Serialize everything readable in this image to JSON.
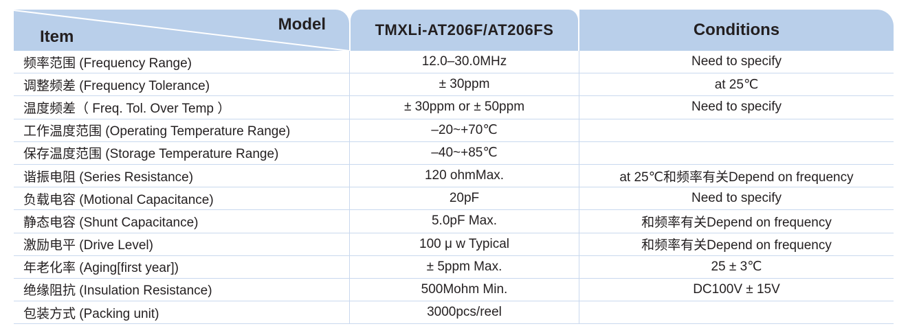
{
  "header": {
    "item": "Item",
    "model": "Model",
    "model_name": "TMXLi-AT206F/AT206FS",
    "conditions": "Conditions",
    "color": "#b9cfea"
  },
  "rows": [
    {
      "item": "频率范围 (Frequency Range)",
      "value": "12.0–30.0MHz",
      "condition": "Need to specify"
    },
    {
      "item": "调整频差 (Frequency Tolerance)",
      "value": "± 30ppm",
      "condition": "at 25℃"
    },
    {
      "item": "温度频差（ Freq. Tol. Over Temp ）",
      "value": "± 30ppm or  ± 50ppm",
      "condition": "Need to specify"
    },
    {
      "item": "工作温度范围 (Operating Temperature Range)",
      "value": "–20~+70℃",
      "condition": ""
    },
    {
      "item": "保存温度范围 (Storage Temperature Range)",
      "value": "–40~+85℃",
      "condition": ""
    },
    {
      "item": "谐振电阻 (Series Resistance)",
      "value": "120 ohmMax.",
      "condition": "at 25℃和频率有关Depend on frequency"
    },
    {
      "item": "负载电容 (Motional Capacitance)",
      "value": "20pF",
      "condition": "Need to specify"
    },
    {
      "item": "静态电容 (Shunt Capacitance)",
      "value": "5.0pF Max.",
      "condition": "和频率有关Depend on frequency"
    },
    {
      "item": "激励电平 (Drive Level)",
      "value": "100 μ w Typical",
      "condition": "和频率有关Depend on frequency"
    },
    {
      "item": "年老化率 (Aging[first year])",
      "value": "± 5ppm Max.",
      "condition": "25 ± 3℃"
    },
    {
      "item": "绝缘阻抗 (Insulation Resistance)",
      "value": "500Mohm Min.",
      "condition": "DC100V ± 15V"
    },
    {
      "item": "包装方式 (Packing unit)",
      "value": "3000pcs/reel",
      "condition": ""
    }
  ]
}
